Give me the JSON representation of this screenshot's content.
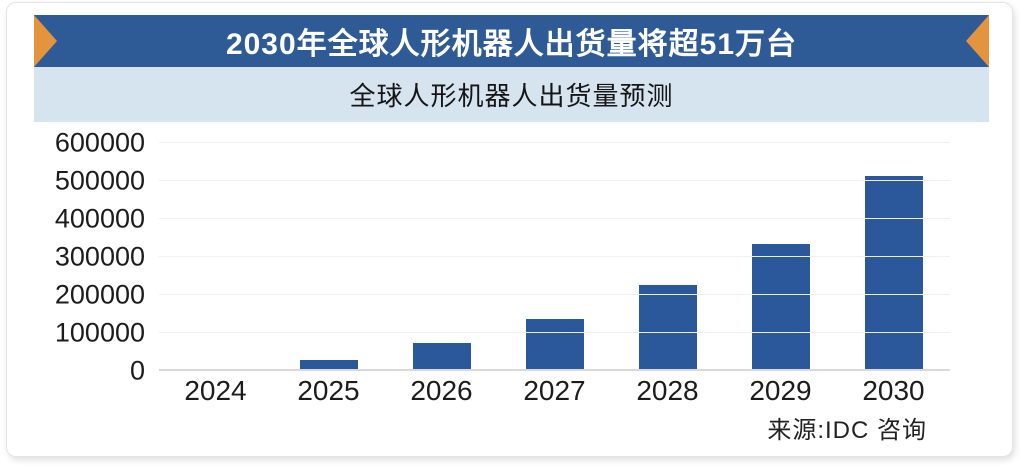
{
  "banner": {
    "title": "2030年全球人形机器人出货量将超51万台"
  },
  "subtitle": "全球人形机器人出货量预测",
  "source": "来源:IDC 咨询",
  "colors": {
    "banner_bg": "#2e5a96",
    "band_bg": "#d6e4ef",
    "bar": "#2b579b",
    "ribbon": "#e5943e",
    "grid": "#efefef",
    "axis": "#d9d9d9"
  },
  "chart_data": {
    "type": "bar",
    "title": "全球人形机器人出货量预测",
    "xlabel": "",
    "ylabel": "",
    "categories": [
      "2024",
      "2025",
      "2026",
      "2027",
      "2028",
      "2029",
      "2030"
    ],
    "values": [
      4000,
      28000,
      73000,
      137000,
      226000,
      333000,
      514000
    ],
    "ylim": [
      0,
      600000
    ],
    "yticks": [
      0,
      100000,
      200000,
      300000,
      400000,
      500000,
      600000
    ],
    "grid": true,
    "legend_position": "none",
    "source": "来源:IDC 咨询"
  }
}
